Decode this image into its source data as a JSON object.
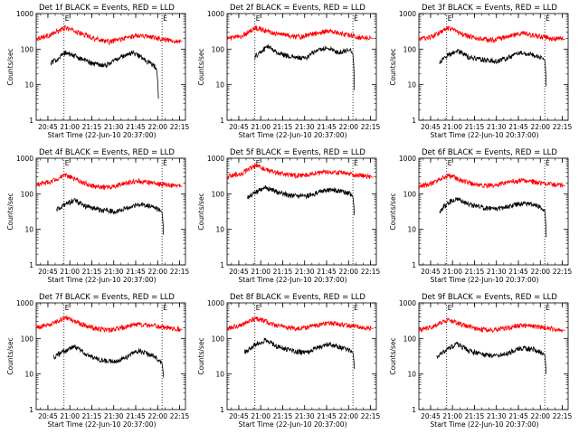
{
  "chart_data": [
    {
      "type": "line",
      "title": "Det 1f BLACK = Events, RED = LLD",
      "xlabel": "Start Time (22-Jun-10 20:37:00)",
      "ylabel": "Counts/sec",
      "x_ticks": [
        "20:45",
        "21:00",
        "21:15",
        "21:30",
        "21:45",
        "22:00",
        "22:15"
      ],
      "y_ticks": [
        "1",
        "10",
        "100",
        "1000"
      ],
      "y_scale": "log",
      "ylim": [
        1,
        1000
      ],
      "xlim_minutes_after_start": [
        0,
        102
      ],
      "markers": [
        {
          "label": "E",
          "x_minutes_after_start": 19
        },
        {
          "label": "E",
          "x_minutes_after_start": 86
        }
      ],
      "series": [
        {
          "color": "#ff0000",
          "x_minutes_after_start": [
            0,
            10,
            20,
            30,
            40,
            50,
            60,
            70,
            80,
            90,
            100
          ],
          "values": [
            200,
            250,
            400,
            280,
            200,
            160,
            200,
            250,
            220,
            180,
            165
          ]
        },
        {
          "color": "#000000",
          "x_minutes_after_start": [
            10,
            15,
            20,
            28,
            38,
            48,
            58,
            66,
            76,
            82,
            83.5
          ],
          "values": [
            40,
            55,
            80,
            60,
            40,
            35,
            60,
            80,
            45,
            30,
            4
          ]
        }
      ]
    },
    {
      "type": "line",
      "title": "Det 2f BLACK = Events, RED = LLD",
      "xlabel": "Start Time (22-Jun-10 20:37:00)",
      "ylabel": "Counts/sec",
      "x_ticks": [
        "20:45",
        "21:00",
        "21:15",
        "21:30",
        "21:45",
        "22:00",
        "22:15"
      ],
      "y_ticks": [
        "1",
        "10",
        "100",
        "1000"
      ],
      "y_scale": "log",
      "ylim": [
        1,
        1000
      ],
      "xlim_minutes_after_start": [
        0,
        102
      ],
      "markers": [
        {
          "label": "E",
          "x_minutes_after_start": 19
        },
        {
          "label": "E",
          "x_minutes_after_start": 86
        }
      ],
      "series": [
        {
          "color": "#ff0000",
          "x_minutes_after_start": [
            0,
            10,
            20,
            30,
            40,
            50,
            60,
            70,
            80,
            90,
            100
          ],
          "values": [
            200,
            230,
            400,
            300,
            250,
            220,
            280,
            330,
            260,
            220,
            200
          ]
        },
        {
          "color": "#000000",
          "x_minutes_after_start": [
            19,
            24,
            28,
            34,
            44,
            54,
            62,
            68,
            76,
            84,
            86,
            87
          ],
          "values": [
            60,
            90,
            120,
            80,
            60,
            55,
            95,
            110,
            80,
            100,
            70,
            7
          ]
        }
      ]
    },
    {
      "type": "line",
      "title": "Det 3f BLACK = Events, RED = LLD",
      "xlabel": "Start Time (22-Jun-10 20:37:00)",
      "ylabel": "Counts/sec",
      "x_ticks": [
        "20:45",
        "21:00",
        "21:15",
        "21:30",
        "21:45",
        "22:00",
        "22:15"
      ],
      "y_ticks": [
        "1",
        "10",
        "100",
        "1000"
      ],
      "y_scale": "log",
      "ylim": [
        1,
        1000
      ],
      "xlim_minutes_after_start": [
        0,
        102
      ],
      "markers": [
        {
          "label": "E",
          "x_minutes_after_start": 19
        },
        {
          "label": "E",
          "x_minutes_after_start": 86
        }
      ],
      "series": [
        {
          "color": "#ff0000",
          "x_minutes_after_start": [
            0,
            10,
            20,
            30,
            40,
            50,
            60,
            70,
            80,
            90,
            100
          ],
          "values": [
            190,
            230,
            380,
            260,
            200,
            180,
            220,
            280,
            240,
            200,
            190
          ]
        },
        {
          "color": "#000000",
          "x_minutes_after_start": [
            14,
            20,
            26,
            34,
            44,
            54,
            62,
            70,
            78,
            84,
            86,
            87
          ],
          "values": [
            40,
            70,
            90,
            60,
            50,
            45,
            60,
            80,
            70,
            55,
            50,
            9
          ]
        }
      ]
    },
    {
      "type": "line",
      "title": "Det 4f BLACK = Events, RED = LLD",
      "xlabel": "Start Time (22-Jun-10 20:37:00)",
      "ylabel": "Counts/sec",
      "x_ticks": [
        "20:45",
        "21:00",
        "21:15",
        "21:30",
        "21:45",
        "22:00",
        "22:15"
      ],
      "y_ticks": [
        "1",
        "10",
        "100",
        "1000"
      ],
      "y_scale": "log",
      "ylim": [
        1,
        1000
      ],
      "xlim_minutes_after_start": [
        0,
        102
      ],
      "markers": [
        {
          "label": "E",
          "x_minutes_after_start": 19
        },
        {
          "label": "E",
          "x_minutes_after_start": 86
        }
      ],
      "series": [
        {
          "color": "#ff0000",
          "x_minutes_after_start": [
            0,
            10,
            20,
            30,
            40,
            50,
            60,
            70,
            80,
            90,
            100
          ],
          "values": [
            180,
            220,
            330,
            220,
            160,
            150,
            200,
            230,
            200,
            180,
            160
          ]
        },
        {
          "color": "#000000",
          "x_minutes_after_start": [
            14,
            20,
            26,
            34,
            44,
            54,
            62,
            70,
            78,
            84,
            86,
            87
          ],
          "values": [
            35,
            50,
            65,
            45,
            35,
            32,
            40,
            50,
            45,
            35,
            30,
            7
          ]
        }
      ]
    },
    {
      "type": "line",
      "title": "Det 5f BLACK = Events, RED = LLD",
      "xlabel": "Start Time (22-Jun-10 20:37:00)",
      "ylabel": "Counts/sec",
      "x_ticks": [
        "20:45",
        "21:00",
        "21:15",
        "21:30",
        "21:45",
        "22:00",
        "22:15"
      ],
      "y_ticks": [
        "1",
        "10",
        "100",
        "1000"
      ],
      "y_scale": "log",
      "ylim": [
        1,
        1000
      ],
      "xlim_minutes_after_start": [
        0,
        102
      ],
      "markers": [
        {
          "label": "E",
          "x_minutes_after_start": 19
        },
        {
          "label": "E",
          "x_minutes_after_start": 86
        }
      ],
      "series": [
        {
          "color": "#ff0000",
          "x_minutes_after_start": [
            0,
            10,
            20,
            30,
            40,
            50,
            60,
            70,
            80,
            90,
            100
          ],
          "values": [
            300,
            380,
            600,
            420,
            350,
            320,
            380,
            420,
            380,
            330,
            290
          ]
        },
        {
          "color": "#000000",
          "x_minutes_after_start": [
            14,
            20,
            26,
            34,
            44,
            54,
            62,
            70,
            78,
            84,
            86,
            87
          ],
          "values": [
            80,
            110,
            150,
            110,
            90,
            85,
            110,
            130,
            120,
            100,
            80,
            25
          ]
        }
      ]
    },
    {
      "type": "line",
      "title": "Det 6f BLACK = Events, RED = LLD",
      "xlabel": "Start Time (22-Jun-10 20:37:00)",
      "ylabel": "Counts/sec",
      "x_ticks": [
        "20:45",
        "21:00",
        "21:15",
        "21:30",
        "21:45",
        "22:00",
        "22:15"
      ],
      "y_ticks": [
        "1",
        "10",
        "100",
        "1000"
      ],
      "y_scale": "log",
      "ylim": [
        1,
        1000
      ],
      "xlim_minutes_after_start": [
        0,
        102
      ],
      "markers": [
        {
          "label": "E",
          "x_minutes_after_start": 19
        },
        {
          "label": "E",
          "x_minutes_after_start": 86
        }
      ],
      "series": [
        {
          "color": "#ff0000",
          "x_minutes_after_start": [
            0,
            10,
            20,
            30,
            40,
            50,
            60,
            70,
            80,
            90,
            100
          ],
          "values": [
            160,
            200,
            330,
            230,
            180,
            170,
            210,
            240,
            210,
            190,
            170
          ]
        },
        {
          "color": "#000000",
          "x_minutes_after_start": [
            14,
            20,
            26,
            34,
            44,
            54,
            62,
            70,
            78,
            84,
            86,
            87
          ],
          "values": [
            30,
            55,
            75,
            50,
            40,
            38,
            45,
            55,
            50,
            40,
            35,
            6
          ]
        }
      ]
    },
    {
      "type": "line",
      "title": "Det 7f BLACK = Events, RED = LLD",
      "xlabel": "Start Time (22-Jun-10 20:37:00)",
      "ylabel": "Counts/sec",
      "x_ticks": [
        "20:45",
        "21:00",
        "21:15",
        "21:30",
        "21:45",
        "22:00",
        "22:15"
      ],
      "y_ticks": [
        "1",
        "10",
        "100",
        "1000"
      ],
      "y_scale": "log",
      "ylim": [
        1,
        1000
      ],
      "xlim_minutes_after_start": [
        0,
        102
      ],
      "markers": [
        {
          "label": "E",
          "x_minutes_after_start": 19
        },
        {
          "label": "E",
          "x_minutes_after_start": 86
        }
      ],
      "series": [
        {
          "color": "#ff0000",
          "x_minutes_after_start": [
            0,
            10,
            20,
            30,
            40,
            50,
            60,
            70,
            80,
            90,
            100
          ],
          "values": [
            200,
            250,
            380,
            260,
            190,
            170,
            210,
            250,
            230,
            200,
            180
          ]
        },
        {
          "color": "#000000",
          "x_minutes_after_start": [
            12,
            20,
            26,
            34,
            44,
            54,
            62,
            70,
            78,
            84,
            86,
            87
          ],
          "values": [
            30,
            45,
            60,
            35,
            25,
            22,
            30,
            45,
            35,
            25,
            20,
            8
          ]
        }
      ]
    },
    {
      "type": "line",
      "title": "Det 8f BLACK = Events, RED = LLD",
      "xlabel": "Start Time (22-Jun-10 20:37:00)",
      "ylabel": "Counts/sec",
      "x_ticks": [
        "20:45",
        "21:00",
        "21:15",
        "21:30",
        "21:45",
        "22:00",
        "22:15"
      ],
      "y_ticks": [
        "1",
        "10",
        "100",
        "1000"
      ],
      "y_scale": "log",
      "ylim": [
        1,
        1000
      ],
      "xlim_minutes_after_start": [
        0,
        102
      ],
      "markers": [
        {
          "label": "E",
          "x_minutes_after_start": 19
        },
        {
          "label": "E",
          "x_minutes_after_start": 86
        }
      ],
      "series": [
        {
          "color": "#ff0000",
          "x_minutes_after_start": [
            0,
            10,
            20,
            30,
            40,
            50,
            60,
            70,
            80,
            90,
            100
          ],
          "values": [
            190,
            240,
            370,
            260,
            200,
            190,
            230,
            270,
            240,
            210,
            190
          ]
        },
        {
          "color": "#000000",
          "x_minutes_after_start": [
            12,
            20,
            26,
            34,
            44,
            54,
            62,
            70,
            78,
            84,
            86,
            87
          ],
          "values": [
            40,
            70,
            90,
            60,
            45,
            40,
            55,
            70,
            55,
            45,
            40,
            14
          ]
        }
      ]
    },
    {
      "type": "line",
      "title": "Det 9f BLACK = Events, RED = LLD",
      "xlabel": "Start Time (22-Jun-10 20:37:00)",
      "ylabel": "Counts/sec",
      "x_ticks": [
        "20:45",
        "21:00",
        "21:15",
        "21:30",
        "21:45",
        "22:00",
        "22:15"
      ],
      "y_ticks": [
        "1",
        "10",
        "100",
        "1000"
      ],
      "y_scale": "log",
      "ylim": [
        1,
        1000
      ],
      "xlim_minutes_after_start": [
        0,
        102
      ],
      "markers": [
        {
          "label": "E",
          "x_minutes_after_start": 19
        },
        {
          "label": "E",
          "x_minutes_after_start": 86
        }
      ],
      "series": [
        {
          "color": "#ff0000",
          "x_minutes_after_start": [
            0,
            10,
            20,
            30,
            40,
            50,
            60,
            70,
            80,
            90,
            100
          ],
          "values": [
            170,
            220,
            330,
            240,
            190,
            170,
            200,
            240,
            220,
            190,
            170
          ]
        },
        {
          "color": "#000000",
          "x_minutes_after_start": [
            12,
            20,
            26,
            34,
            44,
            54,
            62,
            70,
            78,
            84,
            86,
            87
          ],
          "values": [
            30,
            50,
            70,
            45,
            35,
            32,
            40,
            55,
            50,
            40,
            35,
            10
          ]
        }
      ]
    }
  ]
}
